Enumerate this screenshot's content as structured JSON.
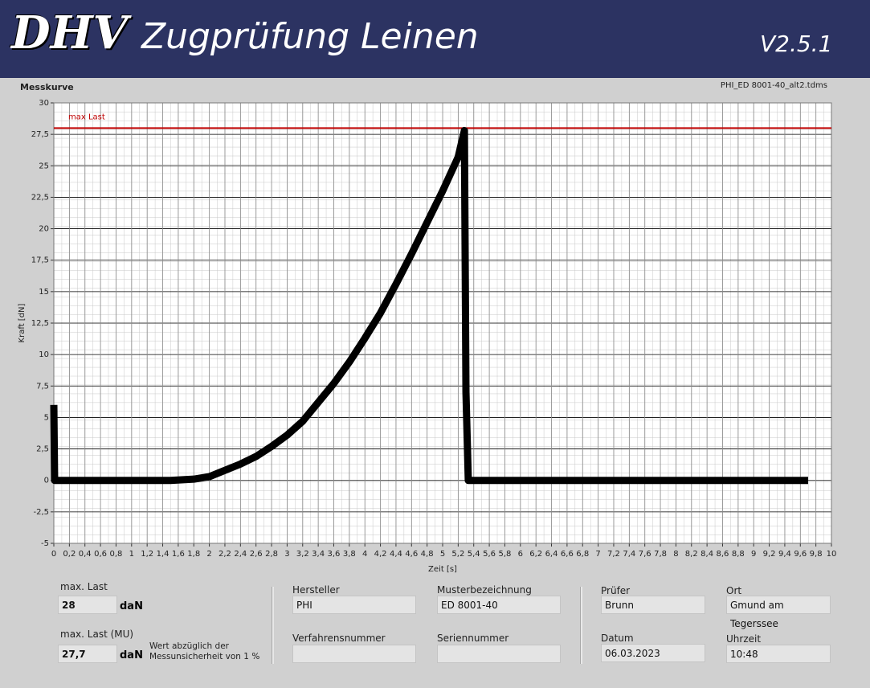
{
  "header": {
    "logo": "DHV",
    "title": "Zugprüfung Leinen",
    "version": "V2.5.1"
  },
  "chart_data": {
    "type": "line",
    "title": "Messkurve",
    "file": "PHI_ED 8001-40_alt2.tdms",
    "x_label": "Zeit [s]",
    "y_label": "Kraft [dN]",
    "xlim": [
      0,
      10
    ],
    "ylim": [
      -5,
      30
    ],
    "grid": true,
    "xticks": [
      0,
      {
        "value": 0.2,
        "label": "0,2"
      },
      {
        "value": 0.4,
        "label": "0,4"
      },
      {
        "value": 0.6,
        "label": "0,6"
      },
      {
        "value": 0.8,
        "label": "0,8"
      },
      1,
      {
        "value": 1.2,
        "label": "1,2"
      },
      {
        "value": 1.4,
        "label": "1,4"
      },
      {
        "value": 1.6,
        "label": "1,6"
      },
      {
        "value": 1.8,
        "label": "1,8"
      },
      2,
      {
        "value": 2.2,
        "label": "2,2"
      },
      {
        "value": 2.4,
        "label": "2,4"
      },
      {
        "value": 2.6,
        "label": "2,6"
      },
      {
        "value": 2.8,
        "label": "2,8"
      },
      3,
      {
        "value": 3.2,
        "label": "3,2"
      },
      {
        "value": 3.4,
        "label": "3,4"
      },
      {
        "value": 3.6,
        "label": "3,6"
      },
      {
        "value": 3.8,
        "label": "3,8"
      },
      4,
      {
        "value": 4.2,
        "label": "4,2"
      },
      {
        "value": 4.4,
        "label": "4,4"
      },
      {
        "value": 4.6,
        "label": "4,6"
      },
      {
        "value": 4.8,
        "label": "4,8"
      },
      5,
      {
        "value": 5.2,
        "label": "5,2"
      },
      {
        "value": 5.4,
        "label": "5,4"
      },
      {
        "value": 5.6,
        "label": "5,6"
      },
      {
        "value": 5.8,
        "label": "5,8"
      },
      6,
      {
        "value": 6.2,
        "label": "6,2"
      },
      {
        "value": 6.4,
        "label": "6,4"
      },
      {
        "value": 6.6,
        "label": "6,6"
      },
      {
        "value": 6.8,
        "label": "6,8"
      },
      7,
      {
        "value": 7.2,
        "label": "7,2"
      },
      {
        "value": 7.4,
        "label": "7,4"
      },
      {
        "value": 7.6,
        "label": "7,6"
      },
      {
        "value": 7.8,
        "label": "7,8"
      },
      8,
      {
        "value": 8.2,
        "label": "8,2"
      },
      {
        "value": 8.4,
        "label": "8,4"
      },
      {
        "value": 8.6,
        "label": "8,6"
      },
      {
        "value": 8.8,
        "label": "8,8"
      },
      9,
      {
        "value": 9.2,
        "label": "9,2"
      },
      {
        "value": 9.4,
        "label": "9,4"
      },
      {
        "value": 9.6,
        "label": "9,6"
      },
      {
        "value": 9.8,
        "label": "9,8"
      },
      10
    ],
    "yticks": [
      -5,
      {
        "value": -2.5,
        "label": "-2,5"
      },
      0,
      {
        "value": 2.5,
        "label": "2,5"
      },
      5,
      {
        "value": 7.5,
        "label": "7,5"
      },
      10,
      {
        "value": 12.5,
        "label": "12,5"
      },
      15,
      {
        "value": 17.5,
        "label": "17,5"
      },
      20,
      {
        "value": 22.5,
        "label": "22,5"
      },
      25,
      {
        "value": 27.5,
        "label": "27,5"
      },
      30
    ],
    "x": [
      0,
      0.01,
      0.5,
      1,
      1.5,
      1.8,
      2,
      2.2,
      2.4,
      2.6,
      2.8,
      3,
      3.2,
      3.4,
      3.6,
      3.8,
      4,
      4.2,
      4.4,
      4.6,
      4.8,
      5,
      5.2,
      5.28,
      5.3,
      5.33,
      6,
      7,
      8,
      9,
      9.7
    ],
    "series": [
      {
        "color": "#000000",
        "values": [
          6,
          0,
          0,
          0,
          0,
          0.1,
          0.3,
          0.8,
          1.3,
          1.9,
          2.7,
          3.6,
          4.7,
          6.2,
          7.7,
          9.4,
          11.3,
          13.3,
          15.6,
          18,
          20.5,
          23,
          25.7,
          27.8,
          7,
          0,
          0,
          0,
          0,
          0,
          0
        ]
      }
    ],
    "annotations": [
      {
        "label": "max Last",
        "value": 28,
        "color": "#c00000"
      }
    ]
  },
  "results": {
    "max_last": {
      "label": "max. Last",
      "value": "28",
      "unit": "daN"
    },
    "max_last_mu": {
      "label": "max. Last (MU)",
      "value": "27,7",
      "unit": "daN",
      "note": "Wert abzüglich der Messunsicherheit von 1 %"
    }
  },
  "info": [
    {
      "label": "Hersteller",
      "value": "PHI"
    },
    {
      "label": "Musterbezeichnung",
      "value": "ED 8001-40"
    },
    {
      "label": "Verfahrensnummer"
    },
    {
      "label": "Seriennummer"
    },
    {
      "label": "Prüfer",
      "value": "Brunn"
    },
    {
      "label": "Ort",
      "value": "Gmund am Tegerssee"
    },
    {
      "label": "Datum",
      "value": "06.03.2023"
    },
    {
      "label": "Uhrzeit",
      "value": "10:48"
    }
  ]
}
